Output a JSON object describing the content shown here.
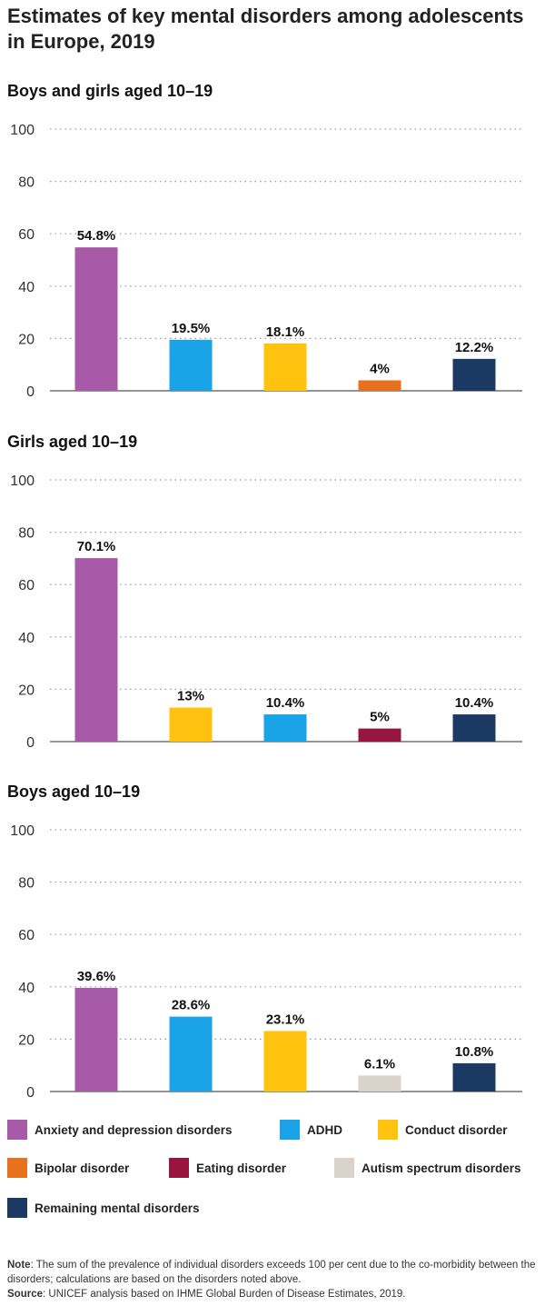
{
  "title": "Estimates of key mental disorders among adolescents in Europe, 2019",
  "colors": {
    "anxiety": "#a75aa8",
    "adhd": "#1aa3e6",
    "conduct": "#ffc20e",
    "bipolar": "#e8711e",
    "eating": "#96163f",
    "autism": "#d9d3cb",
    "remaining": "#1a3a63"
  },
  "chart_data": [
    {
      "type": "bar",
      "title": "Boys and girls aged 10–19",
      "ylim": [
        0,
        100
      ],
      "yticks": [
        "0",
        "20",
        "40",
        "60",
        "80",
        "100"
      ],
      "grid": true,
      "bars": [
        {
          "key": "anxiety",
          "value": 54.8,
          "label": "54.8%"
        },
        {
          "key": "adhd",
          "value": 19.5,
          "label": "19.5%"
        },
        {
          "key": "conduct",
          "value": 18.1,
          "label": "18.1%"
        },
        {
          "key": "bipolar",
          "value": 4,
          "label": "4%"
        },
        {
          "key": "remaining",
          "value": 12.2,
          "label": "12.2%"
        }
      ]
    },
    {
      "type": "bar",
      "title": "Girls aged 10–19",
      "ylim": [
        0,
        100
      ],
      "yticks": [
        "0",
        "20",
        "40",
        "60",
        "80",
        "100"
      ],
      "grid": true,
      "bars": [
        {
          "key": "anxiety",
          "value": 70.1,
          "label": "70.1%"
        },
        {
          "key": "conduct",
          "value": 13,
          "label": "13%"
        },
        {
          "key": "adhd",
          "value": 10.4,
          "label": "10.4%"
        },
        {
          "key": "eating",
          "value": 5,
          "label": "5%"
        },
        {
          "key": "remaining",
          "value": 10.4,
          "label": "10.4%"
        }
      ]
    },
    {
      "type": "bar",
      "title": "Boys aged 10–19",
      "ylim": [
        0,
        100
      ],
      "yticks": [
        "0",
        "20",
        "40",
        "60",
        "80",
        "100"
      ],
      "grid": true,
      "bars": [
        {
          "key": "anxiety",
          "value": 39.6,
          "label": "39.6%"
        },
        {
          "key": "adhd",
          "value": 28.6,
          "label": "28.6%"
        },
        {
          "key": "conduct",
          "value": 23.1,
          "label": "23.1%"
        },
        {
          "key": "autism",
          "value": 6.1,
          "label": "6.1%"
        },
        {
          "key": "remaining",
          "value": 10.8,
          "label": "10.8%"
        }
      ]
    }
  ],
  "legend": {
    "anxiety": "Anxiety and depression disorders",
    "adhd": "ADHD",
    "conduct": "Conduct disorder",
    "bipolar": "Bipolar disorder",
    "eating": "Eating disorder",
    "autism": "Autism spectrum disorders",
    "remaining": "Remaining mental disorders"
  },
  "note": {
    "label": "Note",
    "text": ": The sum of the prevalence of individual disorders exceeds 100 per cent due to the co-morbidity between the disorders; calculations are based on the disorders noted above."
  },
  "source": {
    "label": "Source",
    "text": ": UNICEF analysis based on IHME Global Burden of Disease Estimates, 2019."
  }
}
